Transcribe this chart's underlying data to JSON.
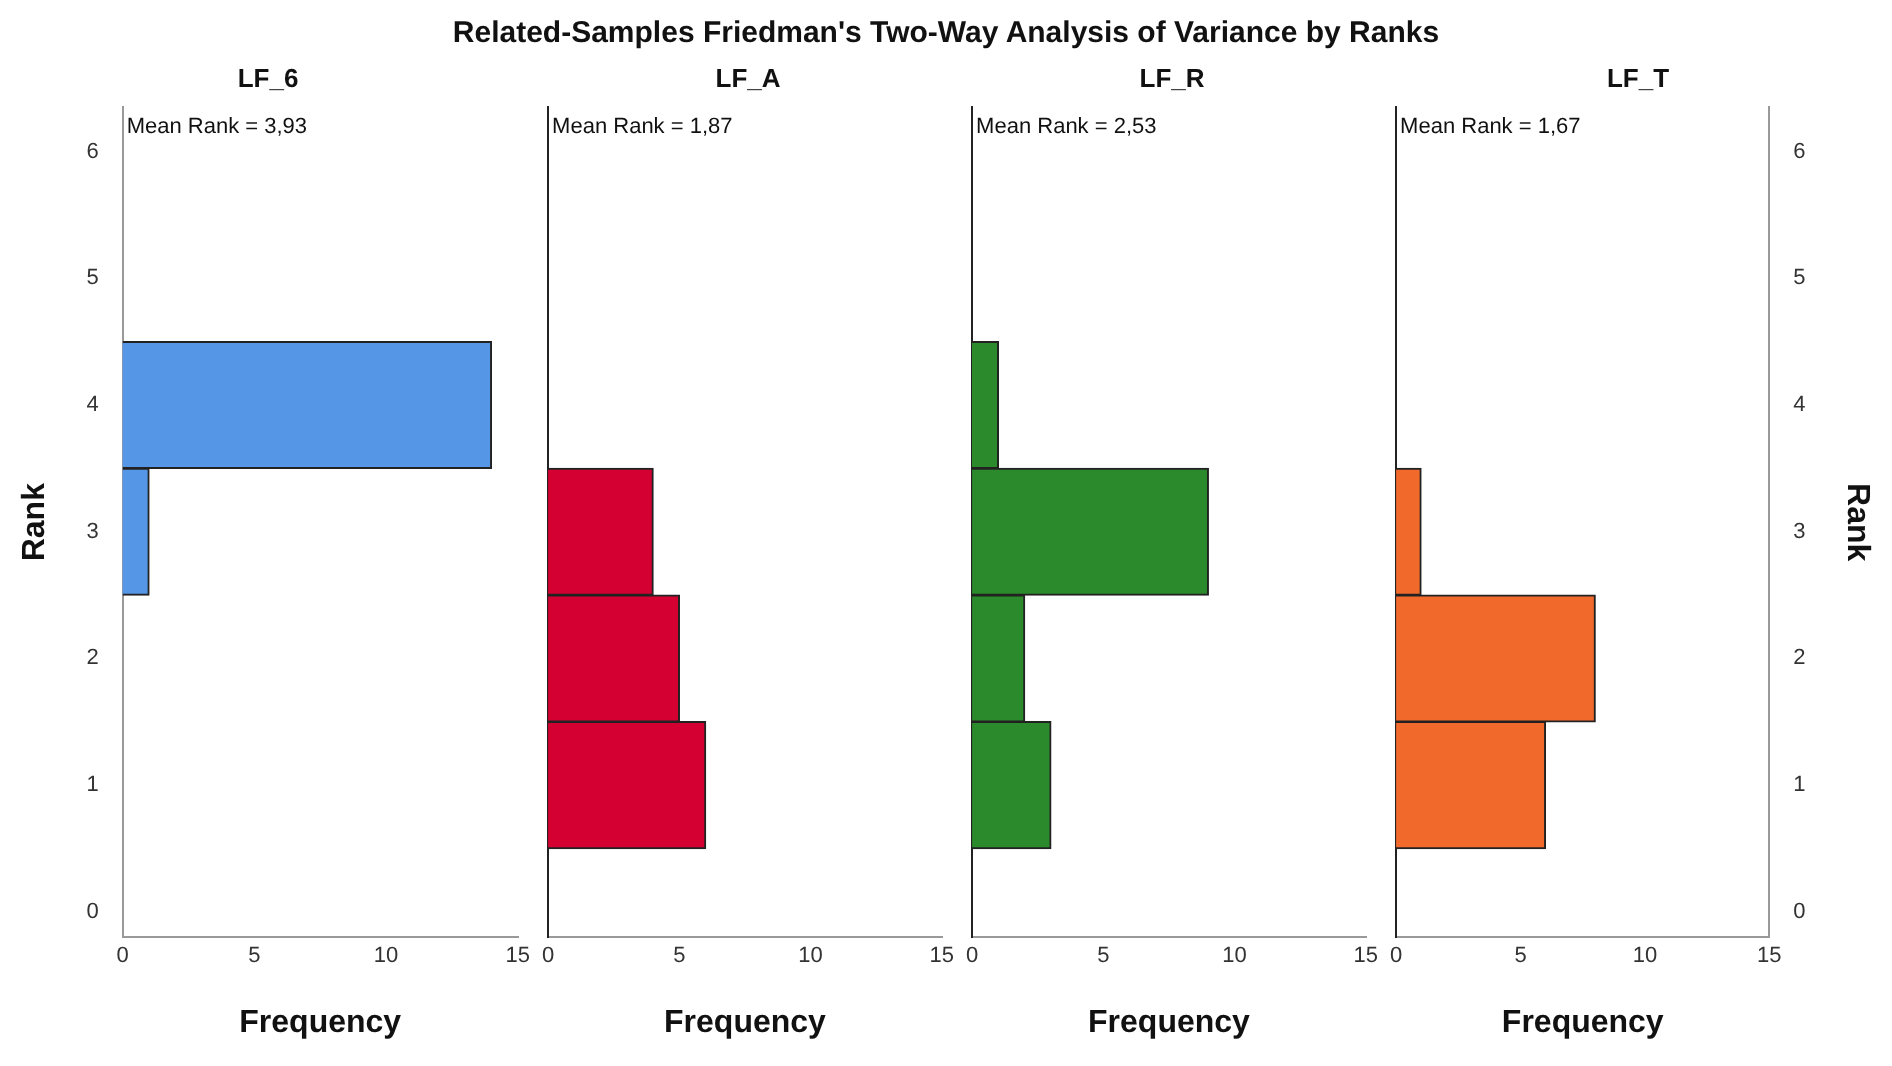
{
  "chart_data": [
    {
      "type": "histogram",
      "title": "Related-Samples Friedman's Two-Way Analysis of Variance by Ranks",
      "subtitle": "LF_6",
      "orientation": "horizontal",
      "bins": [
        2.5,
        3.5,
        4.5
      ],
      "values": [
        1,
        14
      ],
      "color": "#5596e6",
      "xlabel": "Frequency",
      "ylabel": "Rank",
      "xlim": [
        0,
        15
      ],
      "xticks": [
        0,
        5,
        10,
        15
      ],
      "ylim": [
        -0.2,
        6.35
      ],
      "yticks": [
        0,
        1,
        2,
        3,
        4,
        5,
        6
      ],
      "annotations": [
        "Mean Rank = 3,93"
      ]
    },
    {
      "type": "histogram",
      "subtitle": "LF_A",
      "orientation": "horizontal",
      "bins": [
        0.5,
        1.5,
        2.5,
        3.5
      ],
      "values": [
        6,
        5,
        4
      ],
      "color": "#d50032",
      "xlabel": "Frequency",
      "xlim": [
        0,
        15
      ],
      "xticks": [
        0,
        5,
        10,
        15
      ],
      "ylim": [
        -0.2,
        6.35
      ],
      "yticks": [
        0,
        1,
        2,
        3,
        4,
        5,
        6
      ],
      "tick_labels": "x",
      "annotations": [
        "Mean Rank = 1,87"
      ]
    },
    {
      "type": "histogram",
      "subtitle": "LF_R",
      "orientation": "horizontal",
      "bins": [
        0.5,
        1.5,
        2.5,
        3.5,
        4.5
      ],
      "values": [
        3,
        2,
        9,
        1
      ],
      "color": "#2b8a2b",
      "xlabel": "Frequency",
      "xlim": [
        0,
        15
      ],
      "xticks": [
        0,
        5,
        10,
        15
      ],
      "ylim": [
        -0.2,
        6.35
      ],
      "yticks": [
        0,
        1,
        2,
        3,
        4,
        5,
        6
      ],
      "tick_labels": "x",
      "annotations": [
        "Mean Rank = 2,53"
      ]
    },
    {
      "type": "histogram",
      "subtitle": "LF_T",
      "orientation": "horizontal",
      "bins": [
        0.5,
        1.5,
        2.5,
        3.5
      ],
      "values": [
        6,
        8,
        1
      ],
      "color": "#f26a2b",
      "xlabel": "Frequency",
      "ylabel": "Rank",
      "xlim": [
        0,
        15
      ],
      "xticks": [
        0,
        5,
        10,
        15
      ],
      "ylim": [
        -0.2,
        6.35
      ],
      "yticks": [
        0,
        1,
        2,
        3,
        4,
        5,
        6
      ],
      "annotations": [
        "Mean Rank = 1,67"
      ]
    }
  ]
}
